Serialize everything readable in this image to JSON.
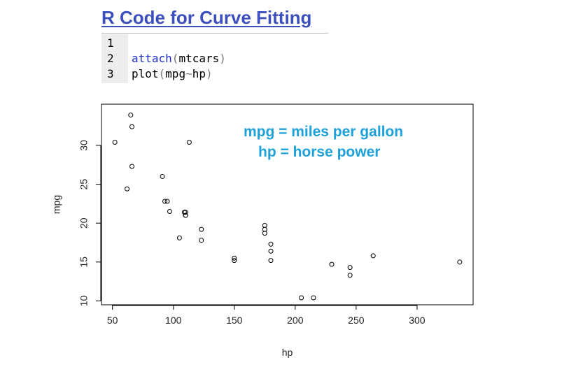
{
  "page": {
    "title": "R Code for Curve Fitting"
  },
  "code": {
    "lines": [
      {
        "num": "1",
        "parts": []
      },
      {
        "num": "2",
        "parts": [
          {
            "text": "attach",
            "cls": "kw"
          },
          {
            "text": "(",
            "cls": "op"
          },
          {
            "text": "mtcars",
            "cls": ""
          },
          {
            "text": ")",
            "cls": "op"
          }
        ]
      },
      {
        "num": "3",
        "parts": [
          {
            "text": "plot",
            "cls": ""
          },
          {
            "text": "(",
            "cls": "op"
          },
          {
            "text": "mpg",
            "cls": ""
          },
          {
            "text": "~",
            "cls": "op"
          },
          {
            "text": "hp",
            "cls": ""
          },
          {
            "text": ")",
            "cls": "op"
          }
        ]
      }
    ]
  },
  "chart_data": {
    "type": "scatter",
    "title": "",
    "xlabel": "hp",
    "ylabel": "mpg",
    "xlim": [
      41,
      346
    ],
    "ylim": [
      9.5,
      35.3
    ],
    "x_ticks": [
      50,
      100,
      150,
      200,
      250,
      300
    ],
    "y_ticks": [
      10,
      15,
      20,
      25,
      30
    ],
    "grid": false,
    "annotations": [
      "mpg = miles per gallon",
      "hp = horse power"
    ],
    "annotation_color": "#1da1db",
    "points": [
      {
        "x": 110,
        "y": 21.0
      },
      {
        "x": 110,
        "y": 21.0
      },
      {
        "x": 93,
        "y": 22.8
      },
      {
        "x": 110,
        "y": 21.4
      },
      {
        "x": 175,
        "y": 18.7
      },
      {
        "x": 105,
        "y": 18.1
      },
      {
        "x": 245,
        "y": 14.3
      },
      {
        "x": 62,
        "y": 24.4
      },
      {
        "x": 95,
        "y": 22.8
      },
      {
        "x": 123,
        "y": 19.2
      },
      {
        "x": 123,
        "y": 17.8
      },
      {
        "x": 180,
        "y": 16.4
      },
      {
        "x": 180,
        "y": 17.3
      },
      {
        "x": 180,
        "y": 15.2
      },
      {
        "x": 205,
        "y": 10.4
      },
      {
        "x": 215,
        "y": 10.4
      },
      {
        "x": 230,
        "y": 14.7
      },
      {
        "x": 66,
        "y": 32.4
      },
      {
        "x": 52,
        "y": 30.4
      },
      {
        "x": 65,
        "y": 33.9
      },
      {
        "x": 97,
        "y": 21.5
      },
      {
        "x": 150,
        "y": 15.5
      },
      {
        "x": 150,
        "y": 15.2
      },
      {
        "x": 245,
        "y": 13.3
      },
      {
        "x": 175,
        "y": 19.2
      },
      {
        "x": 66,
        "y": 27.3
      },
      {
        "x": 91,
        "y": 26.0
      },
      {
        "x": 113,
        "y": 30.4
      },
      {
        "x": 264,
        "y": 15.8
      },
      {
        "x": 175,
        "y": 19.7
      },
      {
        "x": 335,
        "y": 15.0
      },
      {
        "x": 109,
        "y": 21.4
      }
    ]
  }
}
